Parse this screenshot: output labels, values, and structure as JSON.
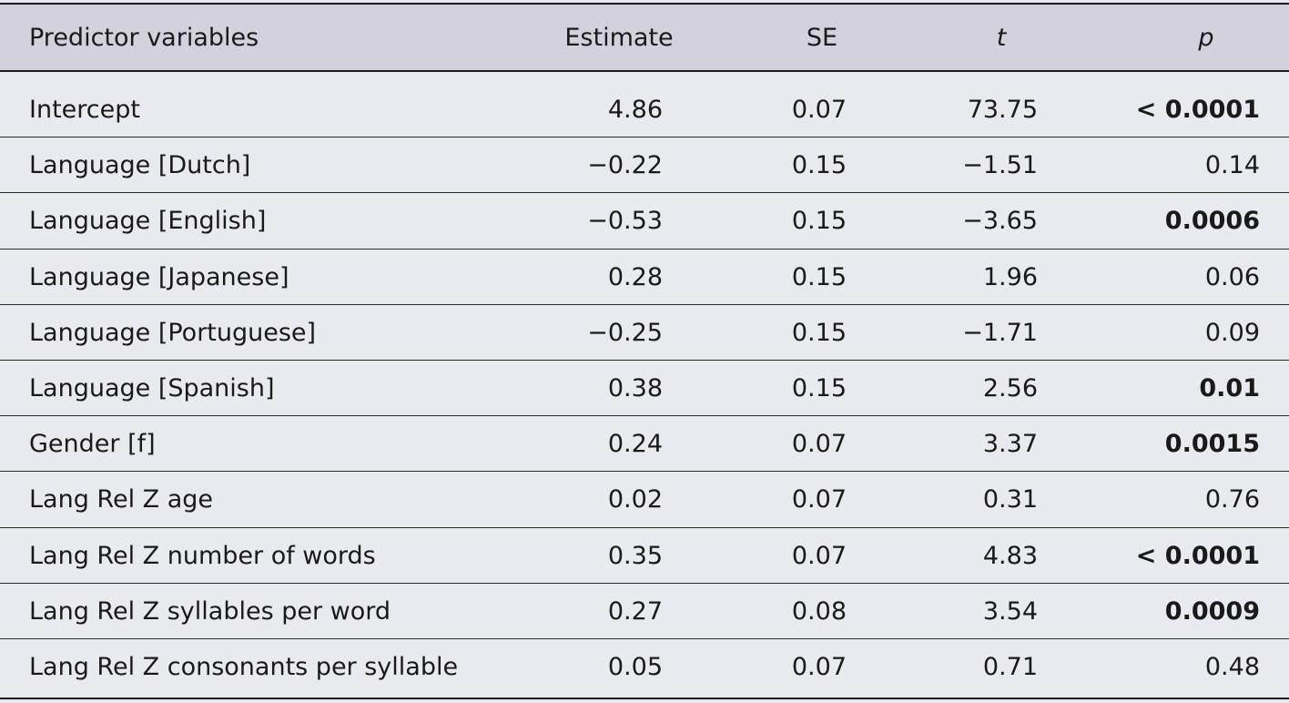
{
  "table": {
    "headers": {
      "predictor": "Predictor variables",
      "estimate": "Estimate",
      "se": "SE",
      "t": "t",
      "p": "p"
    },
    "rows": [
      {
        "predictor": "Intercept",
        "estimate": "4.86",
        "se": "0.07",
        "t": "73.75",
        "p": "< 0.0001",
        "significant": true
      },
      {
        "predictor": "Language [Dutch]",
        "estimate": "−0.22",
        "se": "0.15",
        "t": "−1.51",
        "p": "0.14",
        "significant": false
      },
      {
        "predictor": "Language [English]",
        "estimate": "−0.53",
        "se": "0.15",
        "t": "−3.65",
        "p": "0.0006",
        "significant": true
      },
      {
        "predictor": "Language [Japanese]",
        "estimate": "0.28",
        "se": "0.15",
        "t": "1.96",
        "p": "0.06",
        "significant": false
      },
      {
        "predictor": "Language [Portuguese]",
        "estimate": "−0.25",
        "se": "0.15",
        "t": "−1.71",
        "p": "0.09",
        "significant": false
      },
      {
        "predictor": "Language [Spanish]",
        "estimate": "0.38",
        "se": "0.15",
        "t": "2.56",
        "p": "0.01",
        "significant": true
      },
      {
        "predictor": "Gender [f]",
        "estimate": "0.24",
        "se": "0.07",
        "t": "3.37",
        "p": "0.0015",
        "significant": true
      },
      {
        "predictor": "Lang Rel Z age",
        "estimate": "0.02",
        "se": "0.07",
        "t": "0.31",
        "p": "0.76",
        "significant": false
      },
      {
        "predictor": "Lang Rel Z number of words",
        "estimate": "0.35",
        "se": "0.07",
        "t": "4.83",
        "p": "< 0.0001",
        "significant": true
      },
      {
        "predictor": "Lang Rel Z syllables per word",
        "estimate": "0.27",
        "se": "0.08",
        "t": "3.54",
        "p": "0.0009",
        "significant": true
      },
      {
        "predictor": "Lang Rel Z consonants per syllable",
        "estimate": "0.05",
        "se": "0.07",
        "t": "0.71",
        "p": "0.48",
        "significant": false
      }
    ]
  }
}
